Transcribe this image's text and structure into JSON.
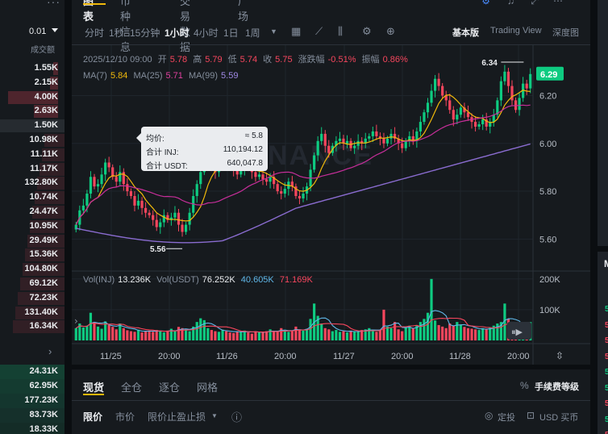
{
  "colors": {
    "up": "#0ecb81",
    "down": "#f6465d",
    "ma7": "#f0b90b",
    "ma25": "#c72e9a",
    "ma99": "#8a6cd0",
    "accent": "#f0b90b"
  },
  "orderbook": {
    "aggregation": "0.01",
    "column_header": "成交额",
    "asks": [
      "1.55K",
      "2.15K",
      "4.00K",
      "2.63K"
    ],
    "mid": "1.50K",
    "bids": [
      "10.98K",
      "11.11K",
      "11.17K",
      "132.80K",
      "10.74K",
      "24.47K",
      "10.95K",
      "29.49K",
      "15.36K",
      "104.80K",
      "69.12K",
      "72.23K",
      "131.40K",
      "16.34K"
    ],
    "lower": [
      "24.31K",
      "62.95K",
      "177.23K",
      "83.73K",
      "18.33K"
    ]
  },
  "tabs": [
    {
      "label": "图表"
    },
    {
      "label": "币种信息"
    },
    {
      "label": "交易数据"
    },
    {
      "label": "广场"
    }
  ],
  "timeframes": [
    "分时",
    "1秒",
    "15分钟",
    "1小时",
    "4小时",
    "1日",
    "1周"
  ],
  "active_timeframe": "1小时",
  "views": [
    "基本版",
    "Trading View",
    "深度图"
  ],
  "ohlc": {
    "date": "2025/12/10 09:00",
    "open_label": "开",
    "open": "5.78",
    "high_label": "高",
    "high": "5.79",
    "low_label": "低",
    "low": "5.74",
    "close_label": "收",
    "close": "5.75",
    "change_label": "涨跌幅",
    "change": "-0.51%",
    "amp_label": "振幅",
    "amp": "0.86%"
  },
  "ma": {
    "ma7_label": "MA(7)",
    "ma7": "5.84",
    "ma25_label": "MA(25)",
    "ma25": "5.71",
    "ma99_label": "MA(99)",
    "ma99": "5.59"
  },
  "volume_legend": {
    "inj_label": "Vol(INJ)",
    "inj": "13.236K",
    "usdt_label": "Vol(USDT)",
    "usdt": "76.252K",
    "ma1": "40.605K",
    "ma2": "71.169K"
  },
  "tooltip": {
    "avg_label": "均价:",
    "avg": "≈ 5.8",
    "inj_label": "合计 INJ:",
    "inj": "110,194.12",
    "usdt_label": "合计 USDT:",
    "usdt": "640,047.8"
  },
  "watermark": "BINANCE",
  "chart_data": {
    "type": "candlestick",
    "price_axis": {
      "ticks": [
        "6.20",
        "6.00",
        "5.80",
        "5.60"
      ],
      "last_price": "6.29",
      "high_marker": "6.34",
      "low_marker": "5.56"
    },
    "volume_axis": {
      "ticks": [
        "200K",
        "100K"
      ]
    },
    "x_ticks": [
      "11/25",
      "20:00",
      "11/26",
      "20:00",
      "11/27",
      "20:00",
      "11/28",
      "20:00"
    ],
    "closes": [
      5.66,
      5.72,
      5.74,
      5.79,
      5.86,
      5.82,
      5.83,
      5.87,
      5.92,
      5.9,
      5.86,
      5.84,
      5.88,
      5.83,
      5.8,
      5.78,
      5.74,
      5.76,
      5.73,
      5.71,
      5.7,
      5.68,
      5.65,
      5.67,
      5.7,
      5.68,
      5.69,
      5.71,
      5.66,
      5.63,
      5.66,
      5.71,
      5.78,
      5.83,
      5.88,
      5.94,
      5.98,
      5.9,
      5.88,
      5.92,
      5.96,
      5.93,
      5.91,
      5.89,
      5.87,
      5.89,
      5.92,
      5.9,
      5.88,
      5.86,
      5.87,
      5.85,
      5.84,
      5.86,
      5.83,
      5.8,
      5.79,
      5.81,
      5.84,
      5.82,
      5.78,
      5.77,
      5.79,
      5.82,
      5.89,
      5.95,
      6.01,
      6.04,
      5.99,
      5.96,
      5.99,
      6.01,
      6.02,
      6.0,
      6.01,
      5.98,
      5.99,
      6.01,
      6.0,
      6.02,
      6.03,
      6.05,
      6.03,
      6.02,
      6.0,
      6.02,
      6.04,
      6.02,
      6.0,
      5.98,
      6.01,
      6.03,
      6.01,
      6.05,
      6.09,
      6.13,
      6.17,
      6.22,
      6.27,
      6.24,
      6.2,
      6.18,
      6.14,
      6.1,
      6.12,
      6.15,
      6.13,
      6.11,
      6.09,
      6.07,
      6.08,
      6.1,
      6.07,
      6.09,
      6.12,
      6.18,
      6.26,
      6.3,
      6.24,
      6.18,
      6.14,
      6.19,
      6.25,
      6.23,
      6.29
    ],
    "volumes": [
      40,
      55,
      42,
      48,
      90,
      60,
      45,
      38,
      62,
      50,
      44,
      36,
      55,
      40,
      33,
      30,
      28,
      35,
      26,
      30,
      32,
      28,
      34,
      30,
      26,
      32,
      38,
      30,
      44,
      40,
      36,
      30,
      45,
      60,
      72,
      66,
      40,
      34,
      30,
      28,
      35,
      30,
      26,
      24,
      30,
      28,
      32,
      26,
      22,
      30,
      28,
      26,
      30,
      36,
      30,
      28,
      40,
      34,
      28,
      30,
      45,
      36,
      32,
      38,
      70,
      120,
      80,
      55,
      40,
      36,
      30,
      34,
      28,
      30,
      26,
      32,
      28,
      30,
      34,
      36,
      40,
      30,
      28,
      35,
      100,
      45,
      40,
      60,
      36,
      30,
      42,
      48,
      40,
      50,
      60,
      70,
      90,
      200,
      65,
      50,
      45,
      40,
      55,
      48,
      60,
      50,
      44,
      40,
      38,
      36,
      34,
      40,
      36,
      42,
      48,
      55,
      60,
      120,
      70,
      50,
      40,
      36,
      44,
      38,
      60
    ]
  },
  "trade_panel": {
    "tabs": [
      "现货",
      "全仓",
      "逐仓",
      "网格"
    ],
    "fee_label": "手续费等级",
    "fee_icon": "%",
    "order_types": [
      "限价",
      "市价",
      "限价止盈止损"
    ],
    "auto_invest": "定投",
    "buy_with": "USD 买币"
  },
  "right_strip": {
    "items": [
      {
        "text": "5",
        "color": "#0ecb81"
      },
      {
        "text": "5",
        "color": "#f6465d"
      },
      {
        "text": "5",
        "color": "#f6465d"
      },
      {
        "text": "5",
        "color": "#f6465d"
      },
      {
        "text": "5",
        "color": "#0ecb81"
      },
      {
        "text": "5",
        "color": "#0ecb81"
      },
      {
        "text": "5",
        "color": "#f6465d"
      },
      {
        "text": "5",
        "color": "#0ecb81"
      },
      {
        "text": "5",
        "color": "#f6465d"
      }
    ],
    "header": "M"
  }
}
